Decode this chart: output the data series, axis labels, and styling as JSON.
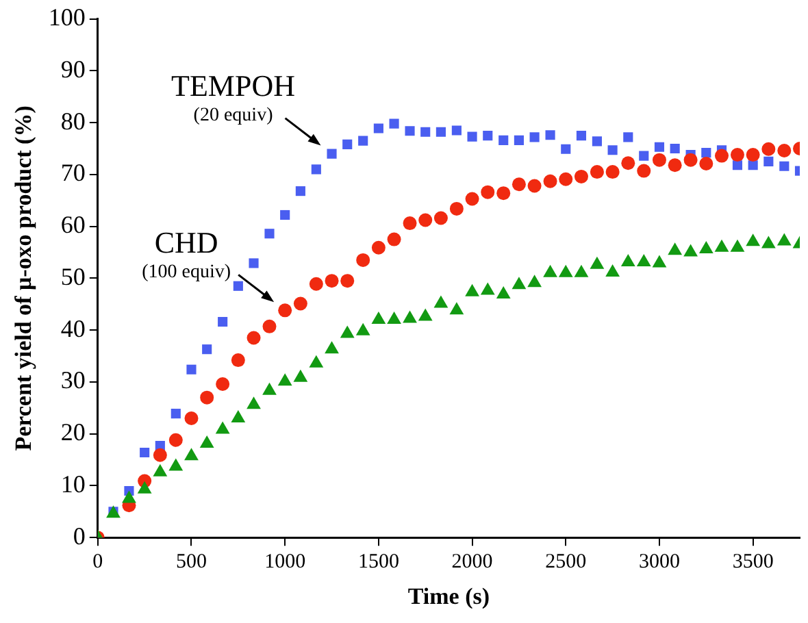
{
  "chart_data": {
    "type": "scatter",
    "xlabel": "Time (s)",
    "ylabel": "Percent yield of μ-oxo product (%)",
    "x": [
      0,
      83,
      167,
      250,
      333,
      417,
      500,
      583,
      667,
      750,
      833,
      917,
      1000,
      1083,
      1167,
      1250,
      1333,
      1417,
      1500,
      1583,
      1667,
      1750,
      1833,
      1917,
      2000,
      2083,
      2167,
      2250,
      2333,
      2417,
      2500,
      2583,
      2667,
      2750,
      2833,
      2917,
      3000,
      3083,
      3167,
      3250,
      3333,
      3417,
      3500,
      3583,
      3667,
      3750
    ],
    "series": [
      {
        "color": "#4a5ef0",
        "marker": "square",
        "values": [
          0,
          5,
          9,
          16.4,
          17.7,
          23.9,
          32.4,
          36.3,
          41.6,
          48.5,
          52.9,
          58.6,
          62.2,
          66.8,
          71,
          74,
          75.8,
          76.5,
          78.9,
          79.8,
          78.4,
          78.2,
          78.2,
          78.5,
          77.3,
          77.5,
          76.6,
          76.6,
          77.2,
          77.6,
          74.9,
          77.5,
          76.4,
          74.7,
          77.2,
          73.6,
          75.3,
          75,
          73.8,
          74.2,
          74.7,
          71.8,
          71.8,
          72.5,
          71.6,
          70.7
        ]
      },
      {
        "color": "#f02a10",
        "marker": "circle",
        "values": [
          0,
          null,
          6.2,
          10.9,
          15.9,
          18.8,
          23,
          27,
          29.6,
          34.2,
          38.5,
          40.7,
          43.8,
          45.1,
          48.9,
          49.5,
          49.5,
          53.5,
          55.9,
          57.5,
          60.6,
          61.2,
          61.6,
          63.4,
          65.3,
          66.6,
          66.4,
          68.1,
          67.8,
          68.7,
          69.1,
          69.6,
          70.5,
          70.5,
          72.2,
          70.7,
          72.8,
          71.8,
          72.8,
          72.1,
          73.6,
          73.8,
          73.8,
          74.9,
          74.6,
          75
        ]
      },
      {
        "color": "#129a12",
        "marker": "triangle",
        "values": [
          0,
          4.6,
          7.5,
          9.3,
          12.6,
          13.7,
          15.7,
          18.1,
          20.8,
          23,
          25.6,
          28.3,
          30.1,
          30.8,
          33.6,
          36.3,
          39.3,
          39.8,
          42,
          42,
          42.2,
          42.6,
          45.1,
          43.8,
          47.3,
          47.6,
          46.9,
          48.7,
          49.1,
          51,
          51,
          51,
          52.6,
          51.1,
          53.1,
          53.1,
          52.9,
          55.3,
          55,
          55.6,
          55.9,
          55.9,
          57,
          56.6,
          57.1,
          56.6
        ]
      }
    ],
    "annotations": [
      {
        "text": "TEMPOH\n(20 equiv)",
        "x": 1250,
        "y": 74
      },
      {
        "text": "CHD\n(100 equiv)",
        "x": 1000,
        "y": 43.8
      }
    ],
    "xlim": [
      0,
      3750
    ],
    "xticks": [
      0,
      500,
      1000,
      1500,
      2000,
      2500,
      3000,
      3500
    ],
    "ylim": [
      0,
      100
    ],
    "yticks": [
      0,
      10,
      20,
      30,
      40,
      50,
      60,
      70,
      80,
      90,
      100
    ],
    "grid": false,
    "legend": false
  }
}
